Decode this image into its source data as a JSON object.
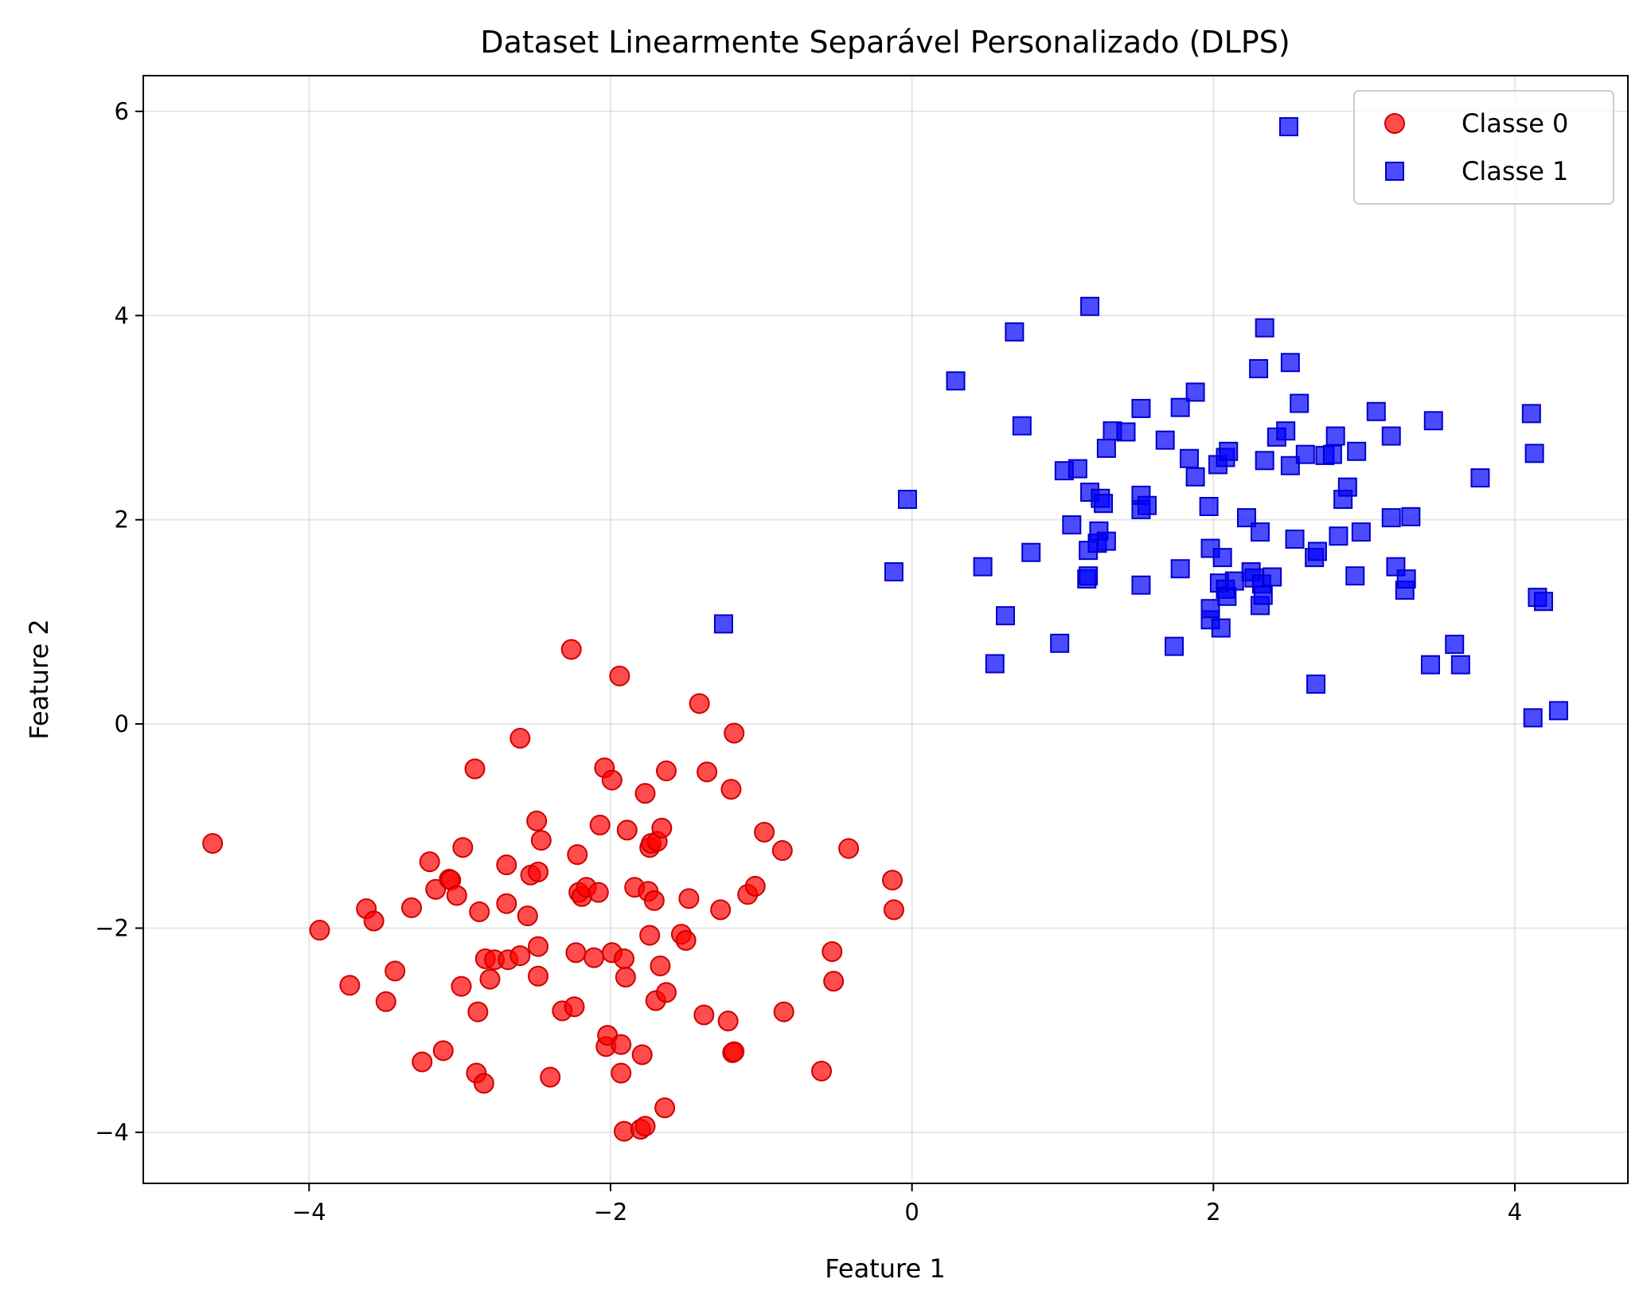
{
  "chart_data": {
    "type": "scatter",
    "title": "Dataset Linearmente Separável Personalizado (DLPS)",
    "xlabel": "Feature 1",
    "ylabel": "Feature 2",
    "xlim": [
      -5.1,
      4.75
    ],
    "ylim": [
      -4.5,
      6.35
    ],
    "xticks": [
      -4,
      -2,
      0,
      2,
      4
    ],
    "yticks": [
      -4,
      -2,
      0,
      2,
      4,
      6
    ],
    "xtick_labels": [
      "−4",
      "−2",
      "0",
      "2",
      "4"
    ],
    "ytick_labels": [
      "−4",
      "−2",
      "0",
      "2",
      "4",
      "6"
    ],
    "grid": true,
    "legend_position": "top-right",
    "series": [
      {
        "name": "Classe 0",
        "marker": "circle",
        "color": "#ff0000",
        "edge_color": "#cc0000",
        "points": [
          [
            -4.64,
            -1.17
          ],
          [
            -3.93,
            -2.02
          ],
          [
            -3.73,
            -2.56
          ],
          [
            -3.62,
            -1.81
          ],
          [
            -3.57,
            -1.93
          ],
          [
            -3.49,
            -2.72
          ],
          [
            -3.43,
            -2.42
          ],
          [
            -3.32,
            -1.8
          ],
          [
            -3.25,
            -3.31
          ],
          [
            -3.2,
            -1.35
          ],
          [
            -3.16,
            -1.62
          ],
          [
            -3.11,
            -3.2
          ],
          [
            -3.07,
            -1.52
          ],
          [
            -3.06,
            -1.53
          ],
          [
            -3.02,
            -1.68
          ],
          [
            -2.99,
            -2.57
          ],
          [
            -2.98,
            -1.21
          ],
          [
            -2.9,
            -0.44
          ],
          [
            -2.89,
            -3.42
          ],
          [
            -2.88,
            -2.82
          ],
          [
            -2.87,
            -1.84
          ],
          [
            -2.84,
            -3.52
          ],
          [
            -2.83,
            -2.3
          ],
          [
            -2.8,
            -2.5
          ],
          [
            -2.77,
            -2.31
          ],
          [
            -2.69,
            -1.38
          ],
          [
            -2.69,
            -1.76
          ],
          [
            -2.68,
            -2.31
          ],
          [
            -2.6,
            -0.14
          ],
          [
            -2.6,
            -2.27
          ],
          [
            -2.55,
            -1.88
          ],
          [
            -2.53,
            -1.48
          ],
          [
            -2.49,
            -0.95
          ],
          [
            -2.48,
            -2.18
          ],
          [
            -2.48,
            -2.47
          ],
          [
            -2.48,
            -1.45
          ],
          [
            -2.46,
            -1.14
          ],
          [
            -2.4,
            -3.46
          ],
          [
            -2.32,
            -2.81
          ],
          [
            -2.26,
            0.73
          ],
          [
            -2.24,
            -2.77
          ],
          [
            -2.23,
            -2.24
          ],
          [
            -2.22,
            -1.28
          ],
          [
            -2.21,
            -1.65
          ],
          [
            -2.19,
            -1.69
          ],
          [
            -2.16,
            -1.6
          ],
          [
            -2.11,
            -2.29
          ],
          [
            -2.08,
            -1.65
          ],
          [
            -2.07,
            -0.99
          ],
          [
            -2.04,
            -0.43
          ],
          [
            -2.03,
            -3.16
          ],
          [
            -2.02,
            -3.05
          ],
          [
            -1.99,
            -0.55
          ],
          [
            -1.99,
            -2.24
          ],
          [
            -1.94,
            0.47
          ],
          [
            -1.93,
            -3.42
          ],
          [
            -1.93,
            -3.14
          ],
          [
            -1.91,
            -3.99
          ],
          [
            -1.91,
            -2.3
          ],
          [
            -1.9,
            -2.48
          ],
          [
            -1.89,
            -1.04
          ],
          [
            -1.84,
            -1.6
          ],
          [
            -1.8,
            -3.97
          ],
          [
            -1.79,
            -3.24
          ],
          [
            -1.77,
            -3.94
          ],
          [
            -1.77,
            -0.68
          ],
          [
            -1.75,
            -1.64
          ],
          [
            -1.74,
            -2.07
          ],
          [
            -1.74,
            -1.21
          ],
          [
            -1.73,
            -1.17
          ],
          [
            -1.71,
            -1.73
          ],
          [
            -1.7,
            -2.71
          ],
          [
            -1.69,
            -1.15
          ],
          [
            -1.67,
            -2.37
          ],
          [
            -1.66,
            -1.02
          ],
          [
            -1.64,
            -3.76
          ],
          [
            -1.63,
            -0.46
          ],
          [
            -1.63,
            -2.63
          ],
          [
            -1.53,
            -2.06
          ],
          [
            -1.5,
            -2.12
          ],
          [
            -1.48,
            -1.71
          ],
          [
            -1.41,
            0.2
          ],
          [
            -1.38,
            -2.85
          ],
          [
            -1.36,
            -0.47
          ],
          [
            -1.27,
            -1.82
          ],
          [
            -1.22,
            -2.91
          ],
          [
            -1.2,
            -0.64
          ],
          [
            -1.19,
            -3.22
          ],
          [
            -1.18,
            -3.21
          ],
          [
            -1.18,
            -0.09
          ],
          [
            -1.09,
            -1.67
          ],
          [
            -1.04,
            -1.59
          ],
          [
            -0.98,
            -1.06
          ],
          [
            -0.86,
            -1.24
          ],
          [
            -0.85,
            -2.82
          ],
          [
            -0.6,
            -3.4
          ],
          [
            -0.53,
            -2.23
          ],
          [
            -0.52,
            -2.52
          ],
          [
            -0.42,
            -1.22
          ],
          [
            -0.13,
            -1.53
          ],
          [
            -0.12,
            -1.82
          ]
        ]
      },
      {
        "name": "Classe 1",
        "marker": "square",
        "color": "#0000ff",
        "edge_color": "#0000cc",
        "points": [
          [
            -1.25,
            0.98
          ],
          [
            -0.12,
            1.49
          ],
          [
            -0.03,
            2.2
          ],
          [
            0.29,
            3.36
          ],
          [
            0.47,
            1.54
          ],
          [
            0.55,
            0.59
          ],
          [
            0.62,
            1.06
          ],
          [
            0.68,
            3.84
          ],
          [
            0.73,
            2.92
          ],
          [
            0.79,
            1.68
          ],
          [
            0.98,
            0.79
          ],
          [
            1.01,
            2.48
          ],
          [
            1.06,
            1.95
          ],
          [
            1.1,
            2.5
          ],
          [
            1.16,
            1.42
          ],
          [
            1.17,
            1.7
          ],
          [
            1.17,
            1.45
          ],
          [
            1.18,
            2.27
          ],
          [
            1.18,
            4.09
          ],
          [
            1.23,
            1.77
          ],
          [
            1.24,
            1.89
          ],
          [
            1.25,
            2.21
          ],
          [
            1.27,
            2.16
          ],
          [
            1.29,
            1.79
          ],
          [
            1.29,
            2.7
          ],
          [
            1.33,
            2.87
          ],
          [
            1.42,
            2.86
          ],
          [
            1.52,
            1.36
          ],
          [
            1.52,
            2.1
          ],
          [
            1.52,
            2.24
          ],
          [
            1.52,
            3.09
          ],
          [
            1.56,
            2.14
          ],
          [
            1.68,
            2.78
          ],
          [
            1.74,
            0.76
          ],
          [
            1.78,
            1.52
          ],
          [
            1.78,
            3.1
          ],
          [
            1.84,
            2.6
          ],
          [
            1.88,
            3.25
          ],
          [
            1.88,
            2.42
          ],
          [
            1.97,
            2.13
          ],
          [
            1.98,
            1.02
          ],
          [
            1.98,
            1.13
          ],
          [
            1.98,
            1.72
          ],
          [
            2.03,
            2.54
          ],
          [
            2.04,
            1.38
          ],
          [
            2.05,
            0.94
          ],
          [
            2.06,
            1.63
          ],
          [
            2.08,
            1.32
          ],
          [
            2.08,
            2.61
          ],
          [
            2.09,
            1.25
          ],
          [
            2.1,
            2.67
          ],
          [
            2.14,
            1.4
          ],
          [
            2.22,
            2.02
          ],
          [
            2.25,
            1.49
          ],
          [
            2.27,
            1.43
          ],
          [
            2.3,
            3.48
          ],
          [
            2.31,
            1.88
          ],
          [
            2.31,
            1.16
          ],
          [
            2.32,
            1.37
          ],
          [
            2.33,
            1.26
          ],
          [
            2.34,
            2.58
          ],
          [
            2.34,
            3.88
          ],
          [
            2.39,
            1.44
          ],
          [
            2.42,
            2.81
          ],
          [
            2.48,
            2.87
          ],
          [
            2.5,
            5.85
          ],
          [
            2.51,
            2.53
          ],
          [
            2.51,
            3.54
          ],
          [
            2.54,
            1.81
          ],
          [
            2.57,
            3.14
          ],
          [
            2.61,
            2.64
          ],
          [
            2.67,
            1.63
          ],
          [
            2.68,
            0.39
          ],
          [
            2.69,
            1.69
          ],
          [
            2.74,
            2.63
          ],
          [
            2.79,
            2.64
          ],
          [
            2.81,
            2.82
          ],
          [
            2.83,
            1.84
          ],
          [
            2.86,
            2.2
          ],
          [
            2.89,
            2.32
          ],
          [
            2.94,
            1.45
          ],
          [
            2.95,
            2.67
          ],
          [
            2.98,
            1.88
          ],
          [
            3.08,
            3.06
          ],
          [
            3.18,
            2.82
          ],
          [
            3.18,
            2.02
          ],
          [
            3.21,
            1.54
          ],
          [
            3.27,
            1.31
          ],
          [
            3.28,
            1.42
          ],
          [
            3.31,
            2.03
          ],
          [
            3.44,
            0.58
          ],
          [
            3.46,
            2.97
          ],
          [
            3.6,
            0.78
          ],
          [
            3.64,
            0.58
          ],
          [
            3.77,
            2.41
          ],
          [
            4.11,
            3.04
          ],
          [
            4.12,
            0.06
          ],
          [
            4.13,
            2.65
          ],
          [
            4.15,
            1.24
          ],
          [
            4.19,
            1.2
          ],
          [
            4.29,
            0.13
          ]
        ]
      }
    ]
  }
}
